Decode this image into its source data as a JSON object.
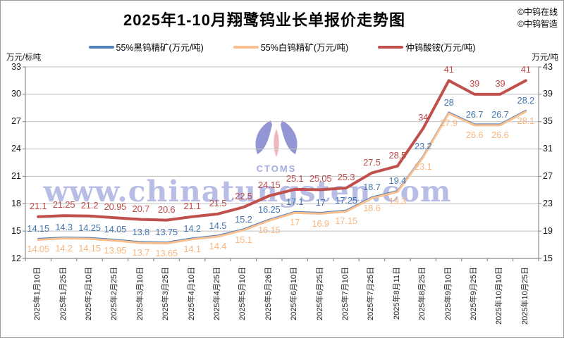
{
  "header": {
    "title": "2025年1-10月翔鹭钨业长单报价走势图",
    "credits": [
      "©中钨在线",
      "©中钨智造"
    ]
  },
  "watermark": {
    "logo_text": "CTOMS",
    "url_text": "www.chinatungsten.com",
    "color": "#7d88cf"
  },
  "chart_data": {
    "type": "line",
    "title": "2025年1-10月翔鹭钨业长单报价走势图",
    "legend_position": "top",
    "grid": true,
    "data_labels": true,
    "categories": [
      "2025年1月10日",
      "2025年1月25日",
      "2025年2月10日",
      "2025年2月25日",
      "2025年3月10日",
      "2025年3月25日",
      "2025年4月10日",
      "2025年4月25日",
      "2025年5月10日",
      "2025年5月26日",
      "2025年6月10日",
      "2025年6月25日",
      "2025年7月10日",
      "2025年7月25日",
      "2025年8月11日",
      "2025年8月25日",
      "2025年9月10日",
      "2025年9月25日",
      "2025年10月10日",
      "2025年10月25日"
    ],
    "series": [
      {
        "name": "55%黑钨精矿(万元/吨)",
        "color": "#4F81BD",
        "label_color": "#4576AE",
        "axis": "left",
        "stroke_width": 2.5,
        "label_dy": -21,
        "values": [
          14.15,
          14.3,
          14.25,
          14.05,
          13.8,
          13.75,
          14.2,
          14.5,
          15.2,
          16.25,
          17.1,
          17,
          17.25,
          18.7,
          19.4,
          23.2,
          28,
          26.7,
          26.7,
          28.2
        ]
      },
      {
        "name": "55%白钨精矿(万元/吨)",
        "color": "#FAC08F",
        "label_color": "#F7B780",
        "axis": "left",
        "stroke_width": 3,
        "label_dy": 7,
        "values": [
          14.05,
          14.2,
          14.15,
          13.95,
          13.7,
          13.65,
          14.1,
          14.4,
          15.1,
          16.15,
          17,
          16.9,
          17.15,
          18.6,
          19.3,
          23.1,
          27.9,
          26.6,
          26.6,
          28.1
        ]
      },
      {
        "name": "仲钨酸铵(万元/吨)",
        "color": "#C0504D",
        "label_color": "#BE4B48",
        "axis": "right",
        "stroke_width": 4,
        "label_dy": -22,
        "values": [
          21.1,
          21.25,
          21.2,
          20.95,
          20.7,
          20.6,
          21.1,
          21.5,
          22.5,
          24.15,
          25.1,
          25.05,
          25.3,
          27.5,
          28.5,
          34,
          41,
          39,
          39,
          41
        ]
      }
    ],
    "left_axis": {
      "label": "万元/标吨",
      "min": 12,
      "max": 33,
      "ticks": [
        33,
        30,
        27,
        24,
        21,
        18,
        15,
        12
      ]
    },
    "right_axis": {
      "label": "万元/吨",
      "min": 15,
      "max": 43,
      "ticks": [
        43,
        39,
        35,
        31,
        27,
        23,
        19,
        15
      ]
    },
    "colors": {
      "gridline": "#bfbfbf",
      "axis": "#8c8c8c",
      "tick_text": "#1a1a1a"
    }
  }
}
